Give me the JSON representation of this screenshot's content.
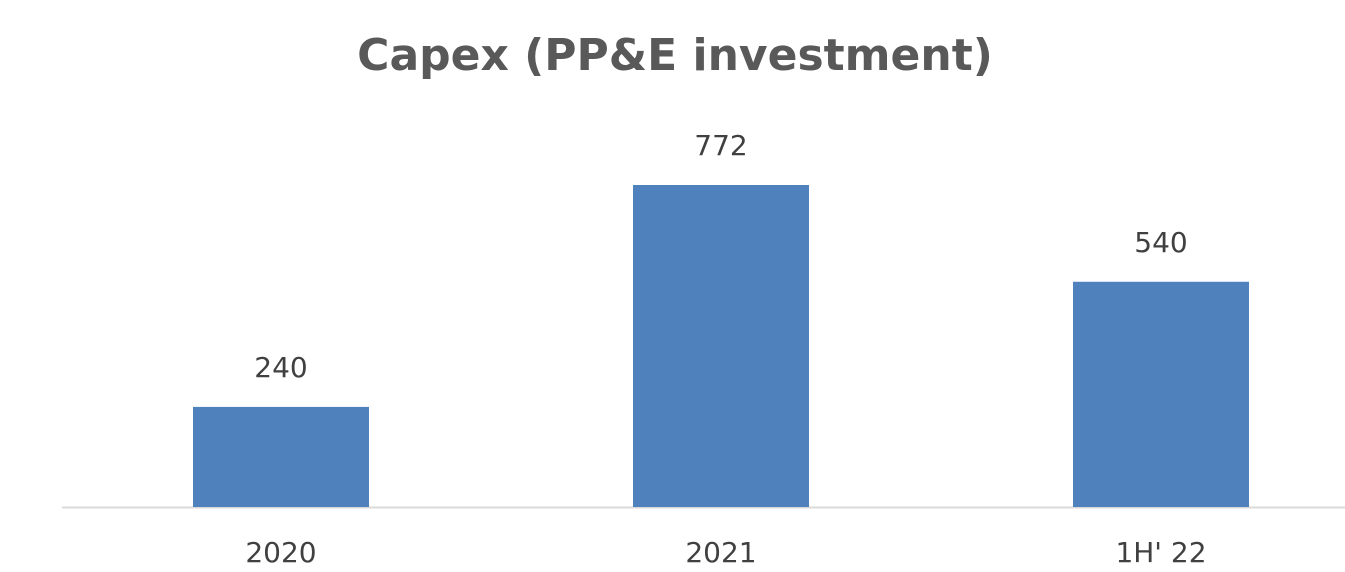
{
  "chart_data": {
    "type": "bar",
    "title": "Capex (PP&E investment)",
    "categories": [
      "2020",
      "2021",
      "1H' 22"
    ],
    "values": [
      240,
      772,
      540
    ],
    "color": "#4f81bd"
  }
}
